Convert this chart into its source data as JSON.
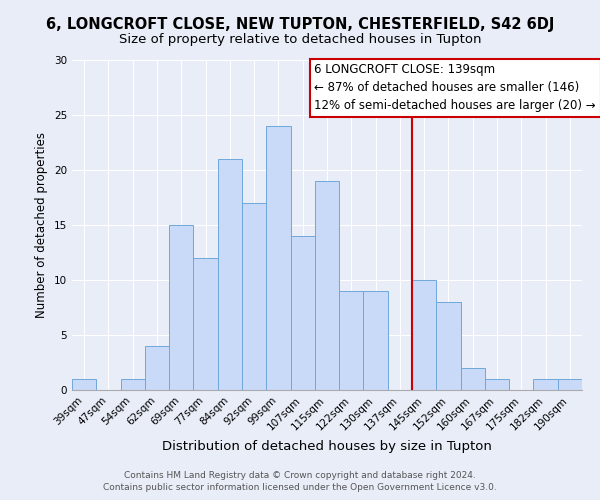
{
  "title": "6, LONGCROFT CLOSE, NEW TUPTON, CHESTERFIELD, S42 6DJ",
  "subtitle": "Size of property relative to detached houses in Tupton",
  "xlabel": "Distribution of detached houses by size in Tupton",
  "ylabel": "Number of detached properties",
  "bins": [
    "39sqm",
    "47sqm",
    "54sqm",
    "62sqm",
    "69sqm",
    "77sqm",
    "84sqm",
    "92sqm",
    "99sqm",
    "107sqm",
    "115sqm",
    "122sqm",
    "130sqm",
    "137sqm",
    "145sqm",
    "152sqm",
    "160sqm",
    "167sqm",
    "175sqm",
    "182sqm",
    "190sqm"
  ],
  "values": [
    1,
    0,
    1,
    4,
    15,
    12,
    21,
    17,
    24,
    14,
    19,
    9,
    9,
    0,
    10,
    8,
    2,
    1,
    0,
    1,
    1
  ],
  "bar_color": "#c9daf8",
  "bar_edge_color": "#6fa8dc",
  "reference_line_color": "#cc0000",
  "annotation_text": "6 LONGCROFT CLOSE: 139sqm\n← 87% of detached houses are smaller (146)\n12% of semi-detached houses are larger (20) →",
  "annotation_box_color": "#ffffff",
  "annotation_box_edge_color": "#cc0000",
  "ylim": [
    0,
    30
  ],
  "yticks": [
    0,
    5,
    10,
    15,
    20,
    25,
    30
  ],
  "background_color": "#e8edf8",
  "grid_color": "#ffffff",
  "footer_text": "Contains HM Land Registry data © Crown copyright and database right 2024.\nContains public sector information licensed under the Open Government Licence v3.0.",
  "title_fontsize": 10.5,
  "subtitle_fontsize": 9.5,
  "xlabel_fontsize": 9.5,
  "ylabel_fontsize": 8.5,
  "tick_fontsize": 7.5,
  "annotation_fontsize": 8.5,
  "footer_fontsize": 6.5
}
